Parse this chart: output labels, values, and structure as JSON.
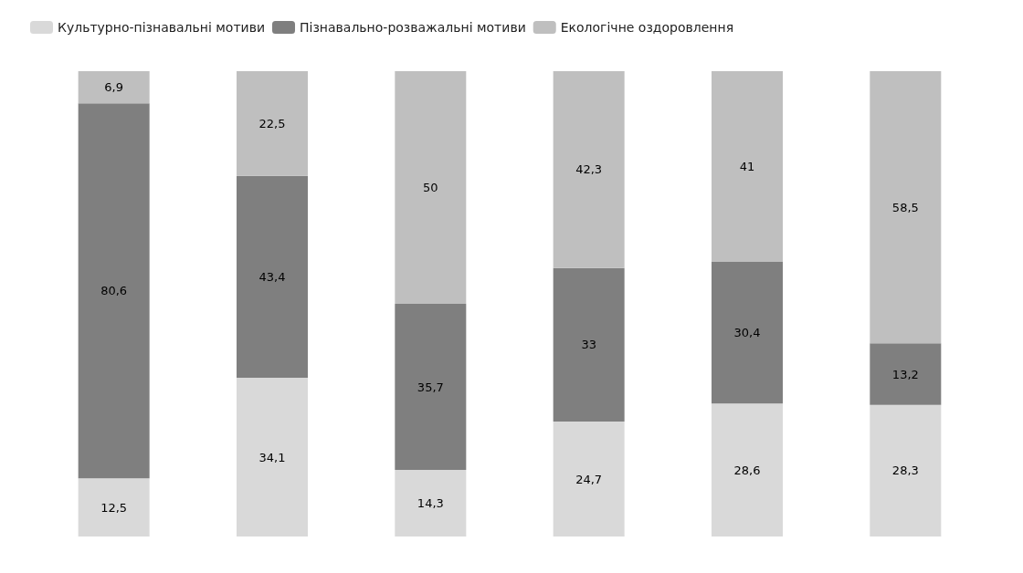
{
  "chart_data": {
    "type": "bar",
    "stacked": true,
    "categories": [
      null,
      null,
      null,
      null,
      null,
      null
    ],
    "legend": "top left",
    "tick_labels": false,
    "series": [
      {
        "name": "Культурно-пізнавальні мотиви",
        "color": "#d9d9d9",
        "values": [
          12.5,
          34.1,
          14.3,
          24.7,
          28.6,
          28.3
        ],
        "value_labels": [
          "12,5",
          "34,1",
          "14,3",
          "24,7",
          "28,6",
          "28,3"
        ]
      },
      {
        "name": "Пізнавально-розважальні мотиви",
        "color": "#7f7f7f",
        "values": [
          80.6,
          43.4,
          35.7,
          33,
          30.4,
          13.2
        ],
        "value_labels": [
          "80,6",
          "43,4",
          "35,7",
          "33",
          "30,4",
          "13,2"
        ]
      },
      {
        "name": "Екологічне оздоровлення",
        "color": "#bfbfbf",
        "values": [
          6.9,
          22.5,
          50,
          42.3,
          41,
          58.5
        ],
        "value_labels": [
          "6,9",
          "22,5",
          "50",
          "42,3",
          "41",
          "58,5"
        ]
      }
    ]
  }
}
